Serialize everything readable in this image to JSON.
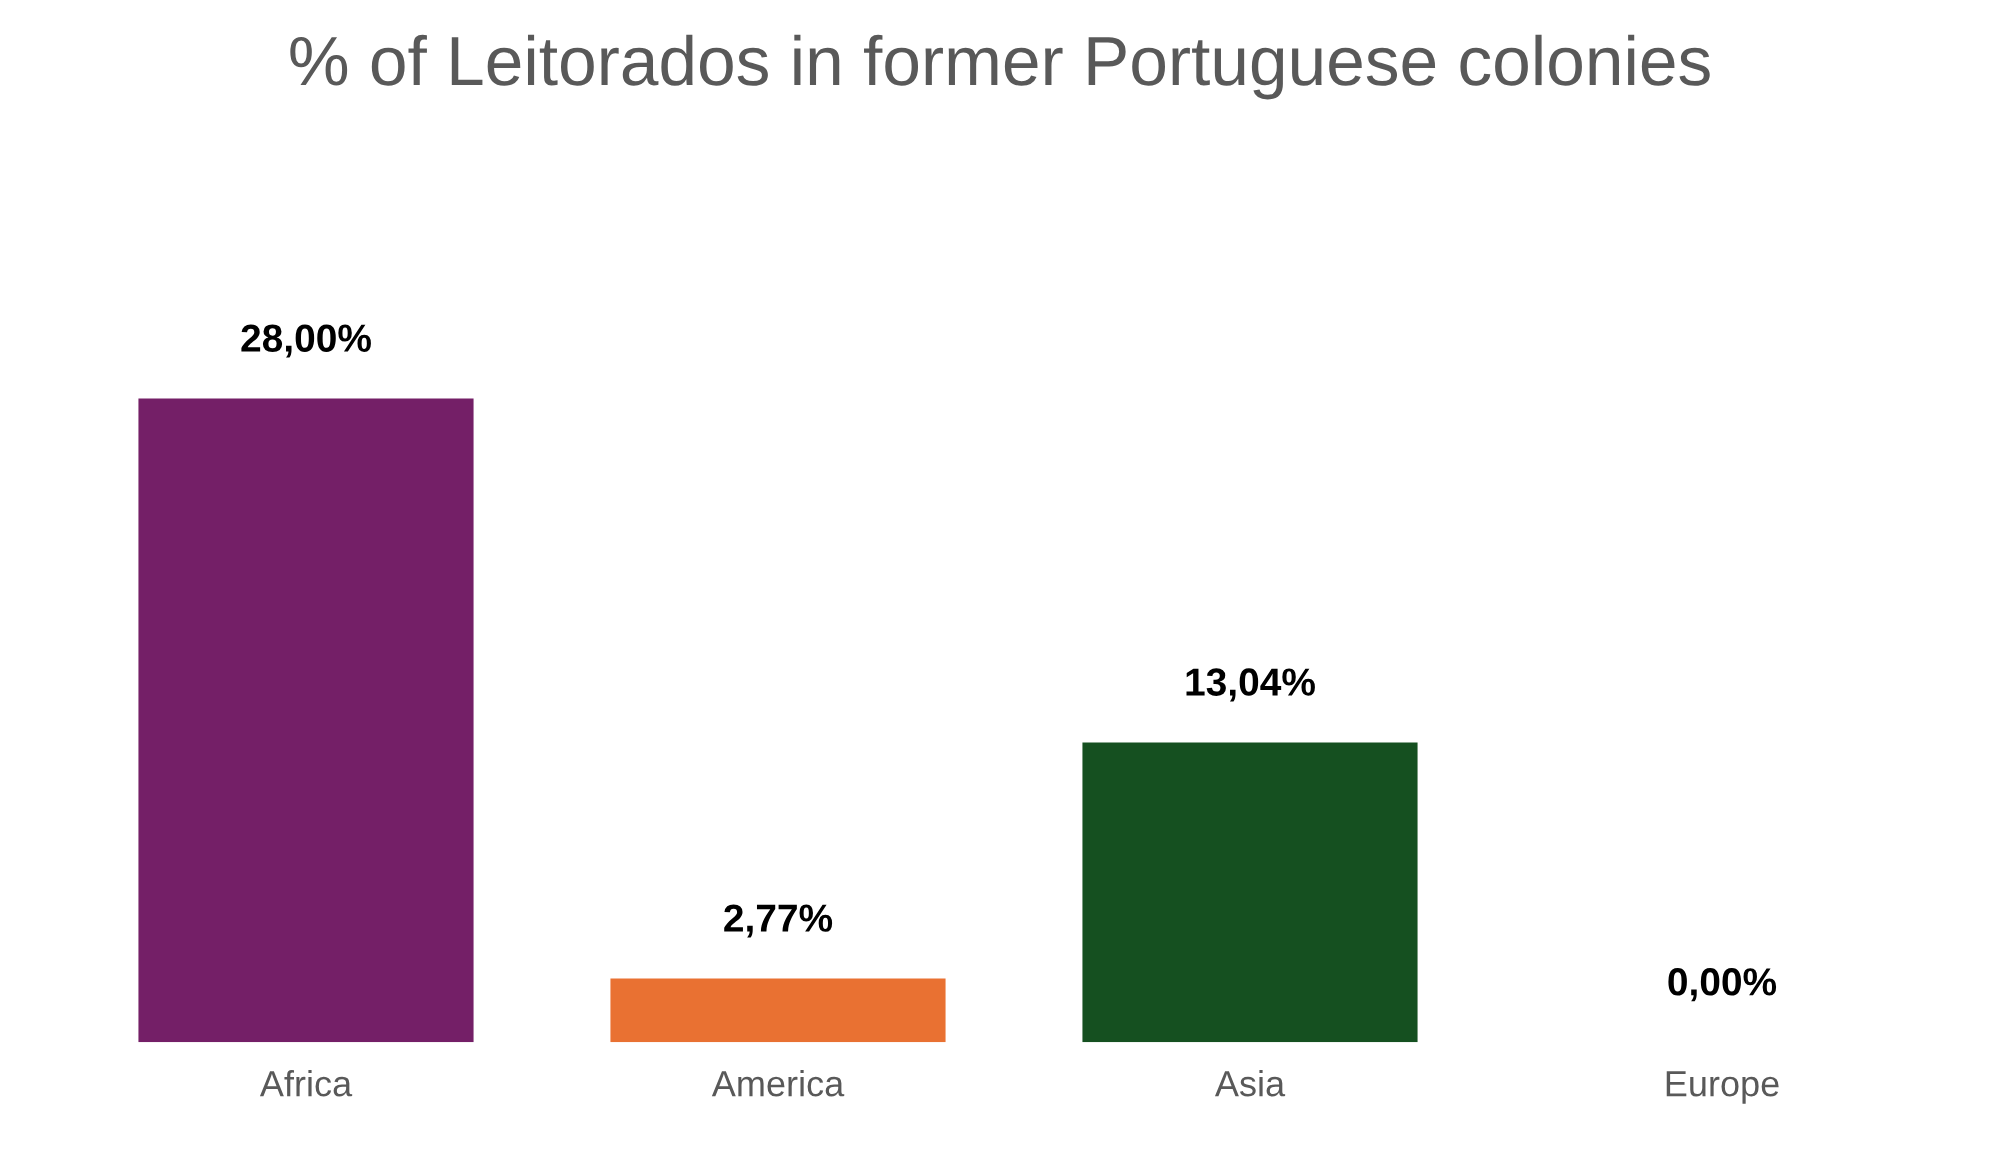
{
  "chart_data": {
    "type": "bar",
    "title": "% of Leitorados in former Portuguese colonies",
    "categories": [
      "Africa",
      "America",
      "Asia",
      "Europe"
    ],
    "values": [
      28.0,
      2.77,
      13.04,
      0.0
    ],
    "value_labels": [
      "28,00%",
      "2,77%",
      "13,04%",
      "0,00%"
    ],
    "colors": [
      "#741f67",
      "#e97132",
      "#155020",
      "#0f9ed5"
    ],
    "grid": false,
    "legend": false
  }
}
